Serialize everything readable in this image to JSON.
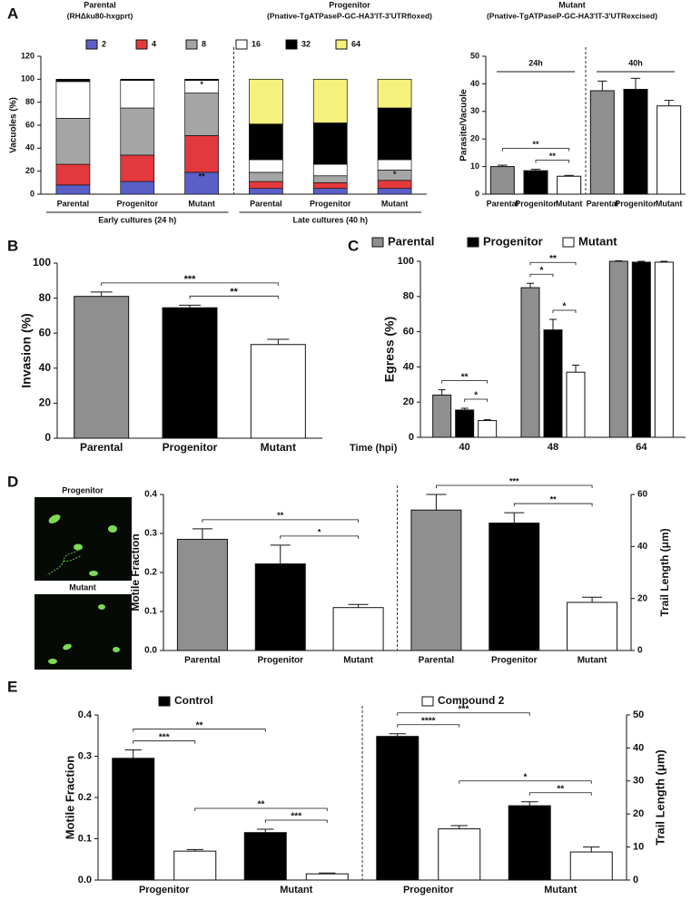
{
  "chart_data": [
    {
      "panel": "A",
      "type": "stacked_bar",
      "headers": [
        {
          "title": "Parental",
          "subtitle": "(RHΔku80-hxgprt)"
        },
        {
          "title": "Progenitor",
          "subtitle": "(Pnative-TgATPaseP-GC-HA3'IT-3'UTRfloxed)"
        },
        {
          "title": "Mutant",
          "subtitle": "(Pnative-TgATPaseP-GC-HA3'IT-3'UTRexcised)"
        }
      ],
      "y_label": "Vacuoles (%)",
      "categories": [
        "Parental",
        "Progenitor",
        "Mutant",
        "Parental",
        "Progenitor",
        "Mutant"
      ],
      "groups": [
        "Early cultures (24 h)",
        "Late cultures (40 h)"
      ],
      "group_label_position": "bottom",
      "series": [
        {
          "name": "2",
          "color": "#5b5fc8",
          "values": [
            8,
            11,
            19,
            5,
            5,
            5
          ]
        },
        {
          "name": "4",
          "color": "#e3393c",
          "values": [
            18,
            23,
            32,
            6,
            5,
            7
          ]
        },
        {
          "name": "8",
          "color": "#a5a5a5",
          "values": [
            40,
            41,
            37,
            8,
            6,
            9
          ]
        },
        {
          "name": "16",
          "color": "#ffffff",
          "values": [
            32,
            24,
            11,
            11,
            10,
            9
          ]
        },
        {
          "name": "32",
          "color": "#000000",
          "values": [
            2,
            1,
            1,
            31,
            36,
            45
          ]
        },
        {
          "name": "64",
          "color": "#f6f07c",
          "values": [
            0,
            0,
            0,
            39,
            38,
            25
          ]
        }
      ],
      "annotations": [
        {
          "text": "*",
          "category": 2,
          "series": "16"
        },
        {
          "text": "**",
          "category": 2,
          "series": "2"
        },
        {
          "text": "*",
          "category": 5,
          "series": "8"
        }
      ],
      "ylim": [
        0,
        120
      ],
      "yticks": [
        0,
        20,
        40,
        60,
        80,
        100,
        120
      ]
    },
    {
      "type": "bar",
      "y_label": "Parasite/Vacuole",
      "categories": [
        "Parental",
        "Progenitor",
        "Mutant",
        "Parental",
        "Progenitor",
        "Mutant"
      ],
      "groups": [
        "24h",
        "40h"
      ],
      "group_label_position": "top",
      "series": [
        {
          "colors": [
            "#8f8f8f",
            "#000000",
            "#ffffff",
            "#8f8f8f",
            "#000000",
            "#ffffff"
          ],
          "values": [
            10,
            8.5,
            6.5,
            37.5,
            38,
            32
          ],
          "errors": [
            0.5,
            0.5,
            0.3,
            3.5,
            4,
            2
          ]
        }
      ],
      "ylim": [
        0,
        50
      ],
      "yticks": [
        0,
        10,
        20,
        30,
        40,
        50
      ],
      "significance": [
        {
          "bars": [
            1,
            2
          ],
          "label": "**"
        },
        {
          "bars": [
            0,
            2
          ],
          "label": "**"
        }
      ]
    },
    {
      "panel": "B",
      "type": "bar",
      "y_label": "Invasion (%)",
      "categories": [
        "Parental",
        "Progenitor",
        "Mutant"
      ],
      "series": [
        {
          "colors": [
            "#8f8f8f",
            "#000000",
            "#ffffff"
          ],
          "values": [
            81,
            74.5,
            53.5
          ],
          "errors": [
            2.5,
            1.5,
            3
          ]
        }
      ],
      "ylim": [
        0,
        100
      ],
      "yticks": [
        0,
        20,
        40,
        60,
        80,
        100
      ],
      "significance": [
        {
          "bars": [
            1,
            2
          ],
          "label": "**"
        },
        {
          "bars": [
            0,
            2
          ],
          "label": "***"
        }
      ]
    },
    {
      "panel": "C",
      "type": "bar",
      "y_label": "Egress (%)",
      "x_label": "Time (hpi)",
      "categories": [
        "40",
        "48",
        "64"
      ],
      "series": [
        {
          "name": "Parental",
          "color": "#8f8f8f",
          "values": [
            24,
            85,
            100
          ],
          "errors": [
            3,
            2.5,
            0.3
          ]
        },
        {
          "name": "Progenitor",
          "color": "#000000",
          "values": [
            15.5,
            61,
            99.5
          ],
          "errors": [
            1,
            6,
            0.5
          ]
        },
        {
          "name": "Mutant",
          "color": "#ffffff",
          "values": [
            9.5,
            37,
            99.5
          ],
          "errors": [
            0.5,
            4,
            0.5
          ]
        }
      ],
      "ylim": [
        0,
        100
      ],
      "yticks": [
        0,
        20,
        40,
        60,
        80,
        100
      ],
      "significance": [
        {
          "bars": [
            1,
            2
          ],
          "label": "*"
        },
        {
          "bars": [
            0,
            2
          ],
          "label": "**"
        },
        {
          "bars": [
            4,
            5
          ],
          "label": "*"
        },
        {
          "bars": [
            3,
            4
          ],
          "label": "*"
        },
        {
          "bars": [
            3,
            5
          ],
          "label": "**"
        }
      ]
    },
    {
      "panel": "D",
      "type": "bar",
      "y_label": "Motile Fraction",
      "y2_label": "Trail Length (μm)",
      "image_labels": [
        "Progenitor",
        "Mutant"
      ],
      "divider": true,
      "categories": [
        "Parental",
        "Progenitor",
        "Mutant",
        "Parental",
        "Progenitor",
        "Mutant"
      ],
      "series": [
        {
          "colors": [
            "#8f8f8f",
            "#000000",
            "#ffffff",
            null,
            null,
            null
          ],
          "values": [
            0.285,
            0.222,
            0.11,
            null,
            null,
            null
          ],
          "errors": [
            0.027,
            0.048,
            0.008,
            null,
            null,
            null
          ]
        },
        {
          "axis": "y2",
          "colors": [
            null,
            null,
            null,
            "#8f8f8f",
            "#000000",
            "#ffffff"
          ],
          "values": [
            null,
            null,
            null,
            54,
            49,
            18.5
          ],
          "errors": [
            null,
            null,
            null,
            6,
            4,
            2
          ]
        }
      ],
      "ylim": [
        0,
        0.4
      ],
      "yticks": [
        {
          "value": 0,
          "label": "0.0"
        },
        0.1,
        0.2,
        0.3,
        0.4
      ],
      "y2lim": [
        0,
        60
      ],
      "y2ticks": [
        0,
        20,
        40,
        60
      ],
      "significance": [
        {
          "bars": [
            1,
            2
          ],
          "label": "*"
        },
        {
          "bars": [
            0,
            2
          ],
          "label": "**"
        },
        {
          "bars": [
            4,
            5
          ],
          "label": "**"
        },
        {
          "bars": [
            3,
            5
          ],
          "label": "***"
        }
      ]
    },
    {
      "panel": "E",
      "type": "bar",
      "y_label": "Motile Fraction",
      "y2_label": "Trail Length (μm)",
      "divider": true,
      "categories": [
        "Progenitor",
        "Mutant",
        "Progenitor",
        "Mutant"
      ],
      "series": [
        {
          "name": "Control",
          "color": "#000000",
          "values": [
            0.295,
            0.115,
            null,
            null
          ],
          "errors": [
            0.02,
            0.008,
            null,
            null
          ]
        },
        {
          "name": "Compound 2",
          "color": "#ffffff",
          "values": [
            0.07,
            0.015,
            null,
            null
          ],
          "errors": [
            0.004,
            0.002,
            null,
            null
          ]
        },
        {
          "axis": "y2",
          "color": "#000000",
          "values": [
            null,
            null,
            43.5,
            22.5
          ],
          "errors": [
            null,
            null,
            0.8,
            1.2
          ]
        },
        {
          "axis": "y2",
          "color": "#ffffff",
          "values": [
            null,
            null,
            15.5,
            8.5
          ],
          "errors": [
            null,
            null,
            1,
            1.5
          ]
        }
      ],
      "ylim": [
        0,
        0.4
      ],
      "yticks": [
        {
          "value": 0,
          "label": "0.0"
        },
        0.1,
        0.2,
        0.3,
        0.4
      ],
      "y2lim": [
        0,
        50
      ],
      "y2ticks": [
        0,
        10,
        20,
        30,
        40,
        50
      ],
      "significance": [
        {
          "bars": [
            0,
            1
          ],
          "label": "***"
        },
        {
          "bars": [
            0,
            2
          ],
          "label": "**"
        },
        {
          "bars": [
            2,
            3
          ],
          "label": "***"
        },
        {
          "bars": [
            1,
            3
          ],
          "label": "**"
        },
        {
          "bars": [
            4,
            5
          ],
          "label": "****"
        },
        {
          "bars": [
            4,
            6
          ],
          "label": "***"
        },
        {
          "bars": [
            6,
            7
          ],
          "label": "**"
        },
        {
          "bars": [
            5,
            7
          ],
          "label": "*"
        }
      ]
    }
  ]
}
